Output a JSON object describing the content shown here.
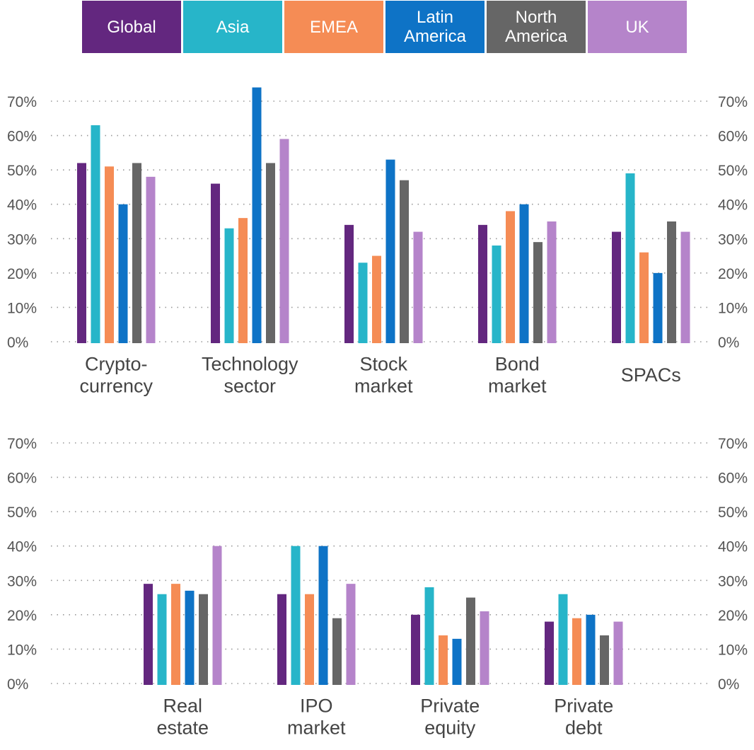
{
  "legend": [
    {
      "label": "Global",
      "color": "#63277F"
    },
    {
      "label": "Asia",
      "color": "#27B5C9"
    },
    {
      "label": "EMEA",
      "color": "#F58C55"
    },
    {
      "label": "Latin\nAmerica",
      "color": "#0E73C6"
    },
    {
      "label": "North\nAmerica",
      "color": "#666666"
    },
    {
      "label": "UK",
      "color": "#B584CA"
    }
  ],
  "chart_data": [
    {
      "type": "bar",
      "title": "",
      "xlabel": "",
      "ylabel": "",
      "ylim": [
        0,
        70
      ],
      "yticks": [
        "0%",
        "10%",
        "20%",
        "30%",
        "40%",
        "50%",
        "60%",
        "70%"
      ],
      "grid": true,
      "categories": [
        "Crypto-\ncurrency",
        "Technology\nsector",
        "Stock\nmarket",
        "Bond\nmarket",
        "SPACs"
      ],
      "series": [
        {
          "name": "Global",
          "values": [
            52,
            46,
            34,
            34,
            32
          ]
        },
        {
          "name": "Asia",
          "values": [
            63,
            33,
            23,
            28,
            49
          ]
        },
        {
          "name": "EMEA",
          "values": [
            51,
            36,
            25,
            38,
            26
          ]
        },
        {
          "name": "Latin America",
          "values": [
            40,
            74,
            53,
            40,
            20
          ]
        },
        {
          "name": "North America",
          "values": [
            52,
            52,
            47,
            29,
            35
          ]
        },
        {
          "name": "UK",
          "values": [
            48,
            59,
            32,
            35,
            32
          ]
        }
      ]
    },
    {
      "type": "bar",
      "title": "",
      "xlabel": "",
      "ylabel": "",
      "ylim": [
        0,
        70
      ],
      "yticks": [
        "0%",
        "10%",
        "20%",
        "30%",
        "40%",
        "50%",
        "60%",
        "70%"
      ],
      "grid": true,
      "categories": [
        "Real\nestate",
        "IPO\nmarket",
        "Private\nequity",
        "Private\ndebt"
      ],
      "series": [
        {
          "name": "Global",
          "values": [
            29,
            26,
            20,
            18
          ]
        },
        {
          "name": "Asia",
          "values": [
            26,
            40,
            28,
            26
          ]
        },
        {
          "name": "EMEA",
          "values": [
            29,
            26,
            14,
            19
          ]
        },
        {
          "name": "Latin America",
          "values": [
            27,
            40,
            13,
            20
          ]
        },
        {
          "name": "North America",
          "values": [
            26,
            19,
            25,
            14
          ]
        },
        {
          "name": "UK",
          "values": [
            40,
            29,
            21,
            18
          ]
        }
      ]
    }
  ]
}
